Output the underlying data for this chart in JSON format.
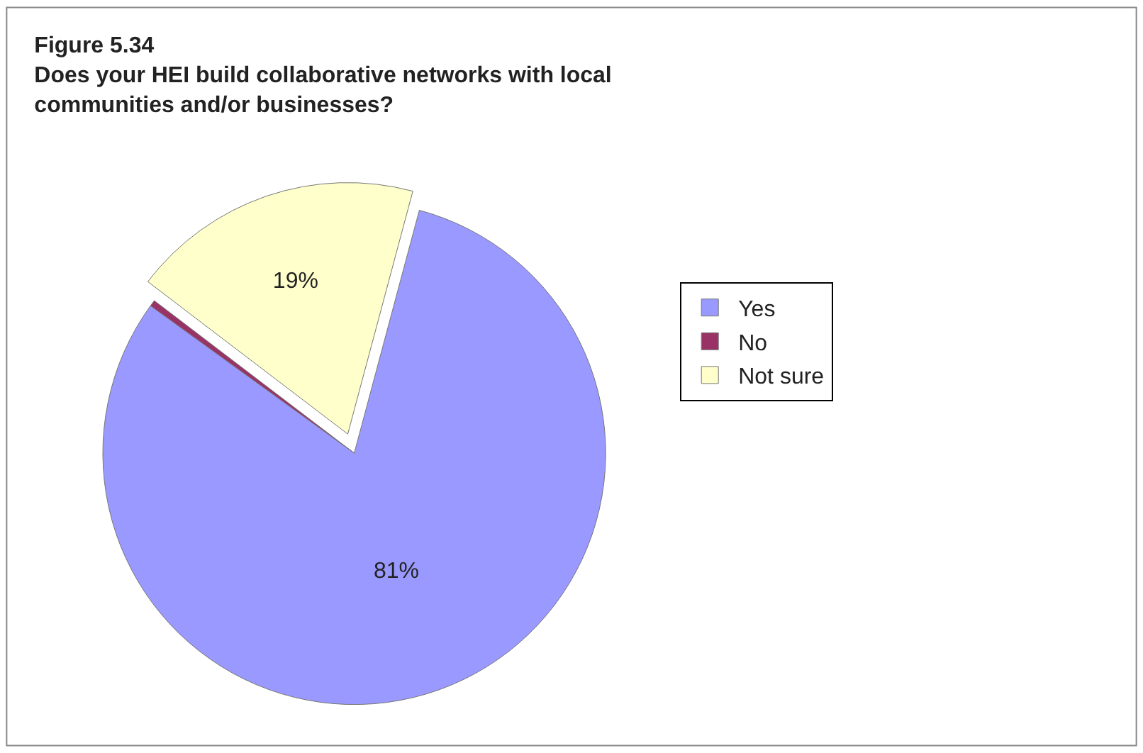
{
  "chart_data": {
    "type": "pie",
    "title": "Figure 5.34",
    "subtitle": "Does your HEI build collaborative networks with local communities and/or businesses?",
    "categories": [
      "Yes",
      "No",
      "Not sure"
    ],
    "values": [
      80.8,
      0.4,
      18.8
    ],
    "colors": [
      "#9999ff",
      "#993366",
      "#ffffcc"
    ],
    "value_labels": [
      "81%",
      null,
      "19%"
    ],
    "legend": "right"
  }
}
